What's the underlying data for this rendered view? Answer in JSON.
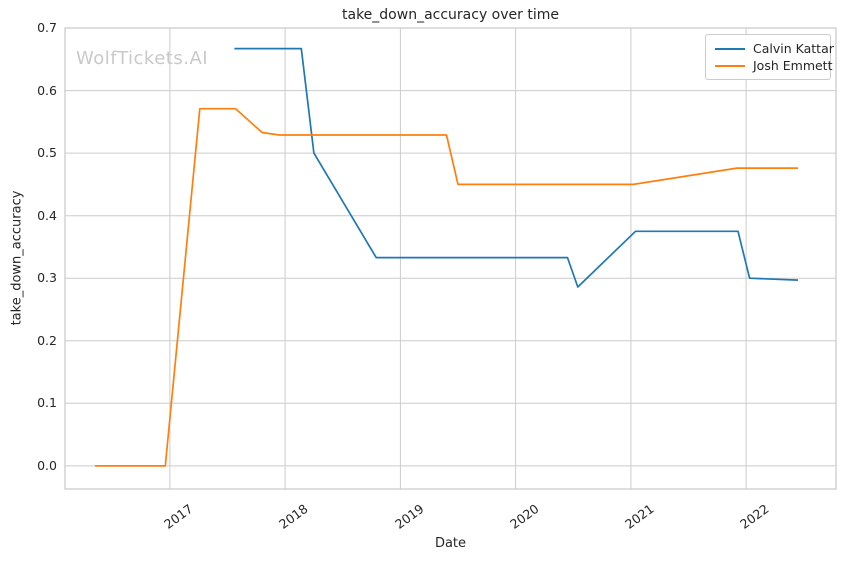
{
  "chart": {
    "title": "take_down_accuracy over time",
    "watermark": "WolfTickets.AI",
    "xlabel": "Date",
    "ylabel": "take_down_accuracy"
  },
  "chart_data": {
    "type": "line",
    "title": "take_down_accuracy over time",
    "xlabel": "Date",
    "ylabel": "take_down_accuracy",
    "x_axis_unit": "year (decimal)",
    "xlim": [
      2016.09,
      2022.78
    ],
    "ylim": [
      -0.037,
      0.7
    ],
    "xticks": [
      2017,
      2018,
      2019,
      2020,
      2021,
      2022
    ],
    "yticks": [
      0.0,
      0.1,
      0.2,
      0.3,
      0.4,
      0.5,
      0.6,
      0.7
    ],
    "grid": true,
    "legend_position": "upper-right",
    "series": [
      {
        "name": "Calvin Kattar",
        "color": "#1f77b4",
        "points": [
          [
            2017.56,
            0.667
          ],
          [
            2018.14,
            0.667
          ],
          [
            2018.25,
            0.5
          ],
          [
            2018.79,
            0.333
          ],
          [
            2020.45,
            0.333
          ],
          [
            2020.54,
            0.286
          ],
          [
            2021.04,
            0.375
          ],
          [
            2021.93,
            0.375
          ],
          [
            2022.03,
            0.3
          ],
          [
            2022.45,
            0.297
          ]
        ]
      },
      {
        "name": "Josh Emmett",
        "color": "#ff7f0e",
        "points": [
          [
            2016.35,
            0.0
          ],
          [
            2016.96,
            0.0
          ],
          [
            2017.26,
            0.571
          ],
          [
            2017.57,
            0.571
          ],
          [
            2017.8,
            0.533
          ],
          [
            2017.95,
            0.529
          ],
          [
            2019.4,
            0.529
          ],
          [
            2019.5,
            0.45
          ],
          [
            2021.02,
            0.45
          ],
          [
            2021.92,
            0.476
          ],
          [
            2022.45,
            0.476
          ]
        ]
      }
    ]
  },
  "style": {
    "background": "#ffffff",
    "grid_color": "#cccccc",
    "spine_color": "#c9c9c9",
    "text_color": "#262626",
    "watermark_color": "#c9c9c9"
  }
}
